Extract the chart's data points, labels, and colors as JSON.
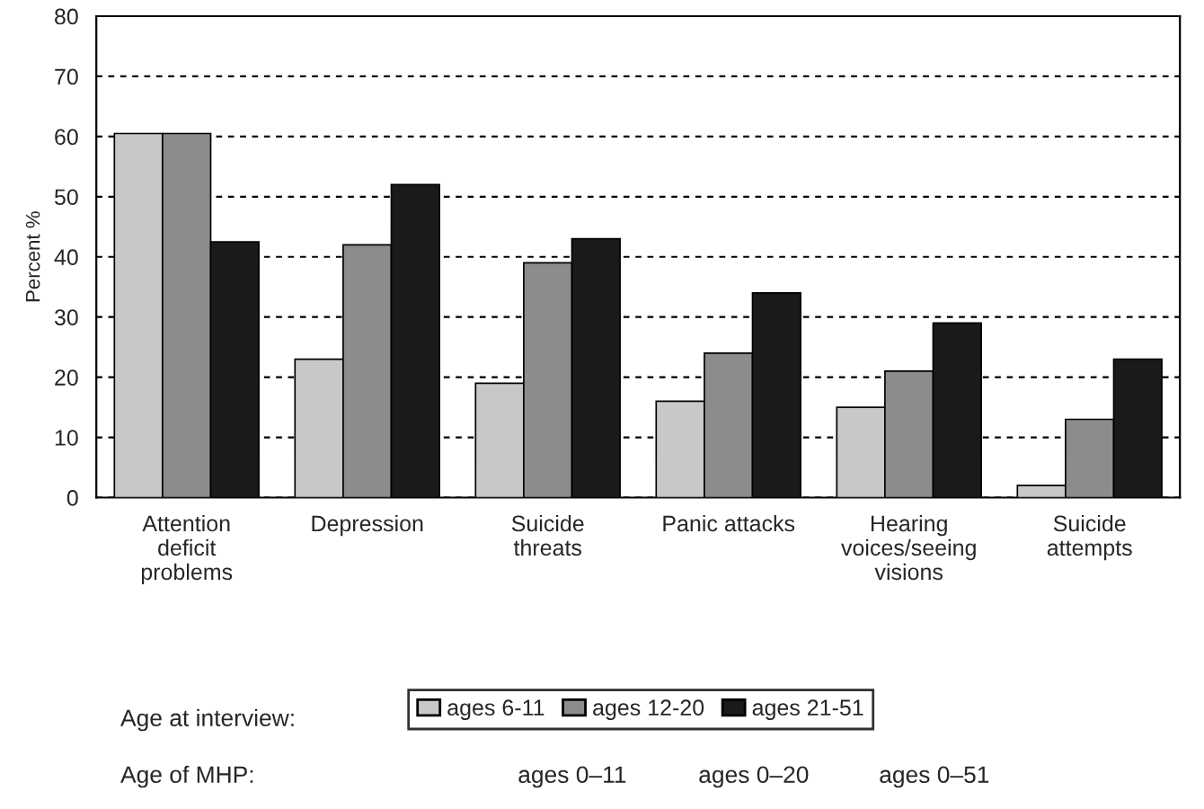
{
  "chart_data": {
    "type": "bar",
    "ylabel": "Percent %",
    "legend_title": "Age at interview:",
    "categories": [
      "Attention\ndeficit\nproblems",
      "Depression",
      "Suicide\nthreats",
      "Panic attacks",
      "Hearing\nvoices/seeing\nvisions",
      "Suicide\nattempts"
    ],
    "series": [
      {
        "name": "ages 6-11",
        "color": "#c8c8c8",
        "values": [
          60.5,
          23,
          19,
          16,
          15,
          2
        ]
      },
      {
        "name": "ages 12-20",
        "color": "#8c8c8c",
        "values": [
          60.5,
          42,
          39,
          24,
          21,
          13
        ]
      },
      {
        "name": "ages 21-51",
        "color": "#1a1a1a",
        "values": [
          42.5,
          52,
          43,
          34,
          29,
          23
        ]
      }
    ],
    "ylim": [
      0,
      80
    ],
    "yticks": [
      0,
      10,
      20,
      30,
      40,
      50,
      60,
      70,
      80
    ],
    "grid": "y",
    "legend": "bottom",
    "annotations": [
      "Age of MHP:",
      "ages 0–11",
      "ages 0–20",
      "ages 0–51"
    ]
  }
}
